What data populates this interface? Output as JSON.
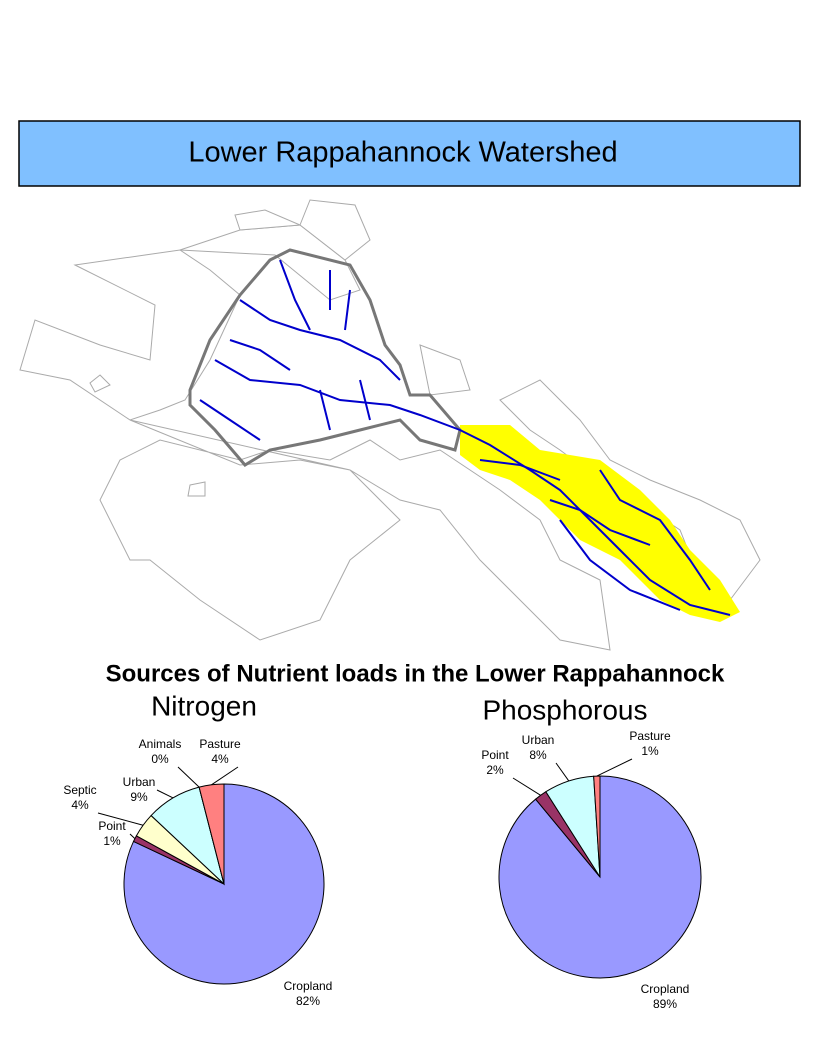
{
  "title": "Lower Rappahannock Watershed",
  "subtitle": "Sources of Nutrient loads in the Lower Rappahannock",
  "chart_data": [
    {
      "type": "pie",
      "title": "Nitrogen",
      "categories": [
        "Cropland",
        "Point",
        "Septic",
        "Urban",
        "Animals",
        "Pasture"
      ],
      "values": [
        82,
        1,
        4,
        9,
        0,
        4
      ],
      "value_labels": [
        "82%",
        "1%",
        "4%",
        "9%",
        "0%",
        "4%"
      ],
      "colors": [
        "#9999ff",
        "#993366",
        "#ffffcc",
        "#ccffff",
        "#ffffff",
        "#ff8080"
      ]
    },
    {
      "type": "pie",
      "title": "Phosphorous",
      "categories": [
        "Cropland",
        "Point",
        "Urban",
        "Pasture"
      ],
      "values": [
        89,
        2,
        8,
        1
      ],
      "value_labels": [
        "89%",
        "2%",
        "8%",
        "1%"
      ],
      "colors": [
        "#9999ff",
        "#993366",
        "#ccffff",
        "#ff8080"
      ]
    }
  ]
}
